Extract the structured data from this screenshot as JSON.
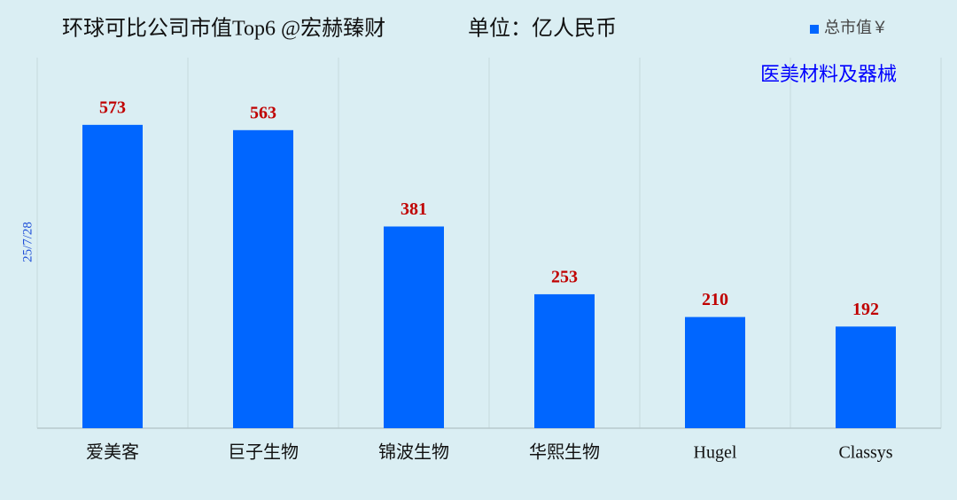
{
  "chart_data": {
    "type": "bar",
    "title": "环球可比公司市值Top6 @宏赫臻财",
    "unit": "单位：亿人民币",
    "annotation": "医美材料及器械",
    "ylabel": "25/7/28",
    "categories": [
      "爱美客",
      "巨子生物",
      "锦波生物",
      "华熙生物",
      "Hugel",
      "Classys"
    ],
    "series": [
      {
        "name": "总市值￥",
        "color": "#0066ff",
        "values": [
          573,
          563,
          381,
          253,
          210,
          192
        ]
      }
    ],
    "ylim": [
      0,
      700
    ],
    "grid": true,
    "legend": "top-right",
    "label_color": "#c00000"
  }
}
